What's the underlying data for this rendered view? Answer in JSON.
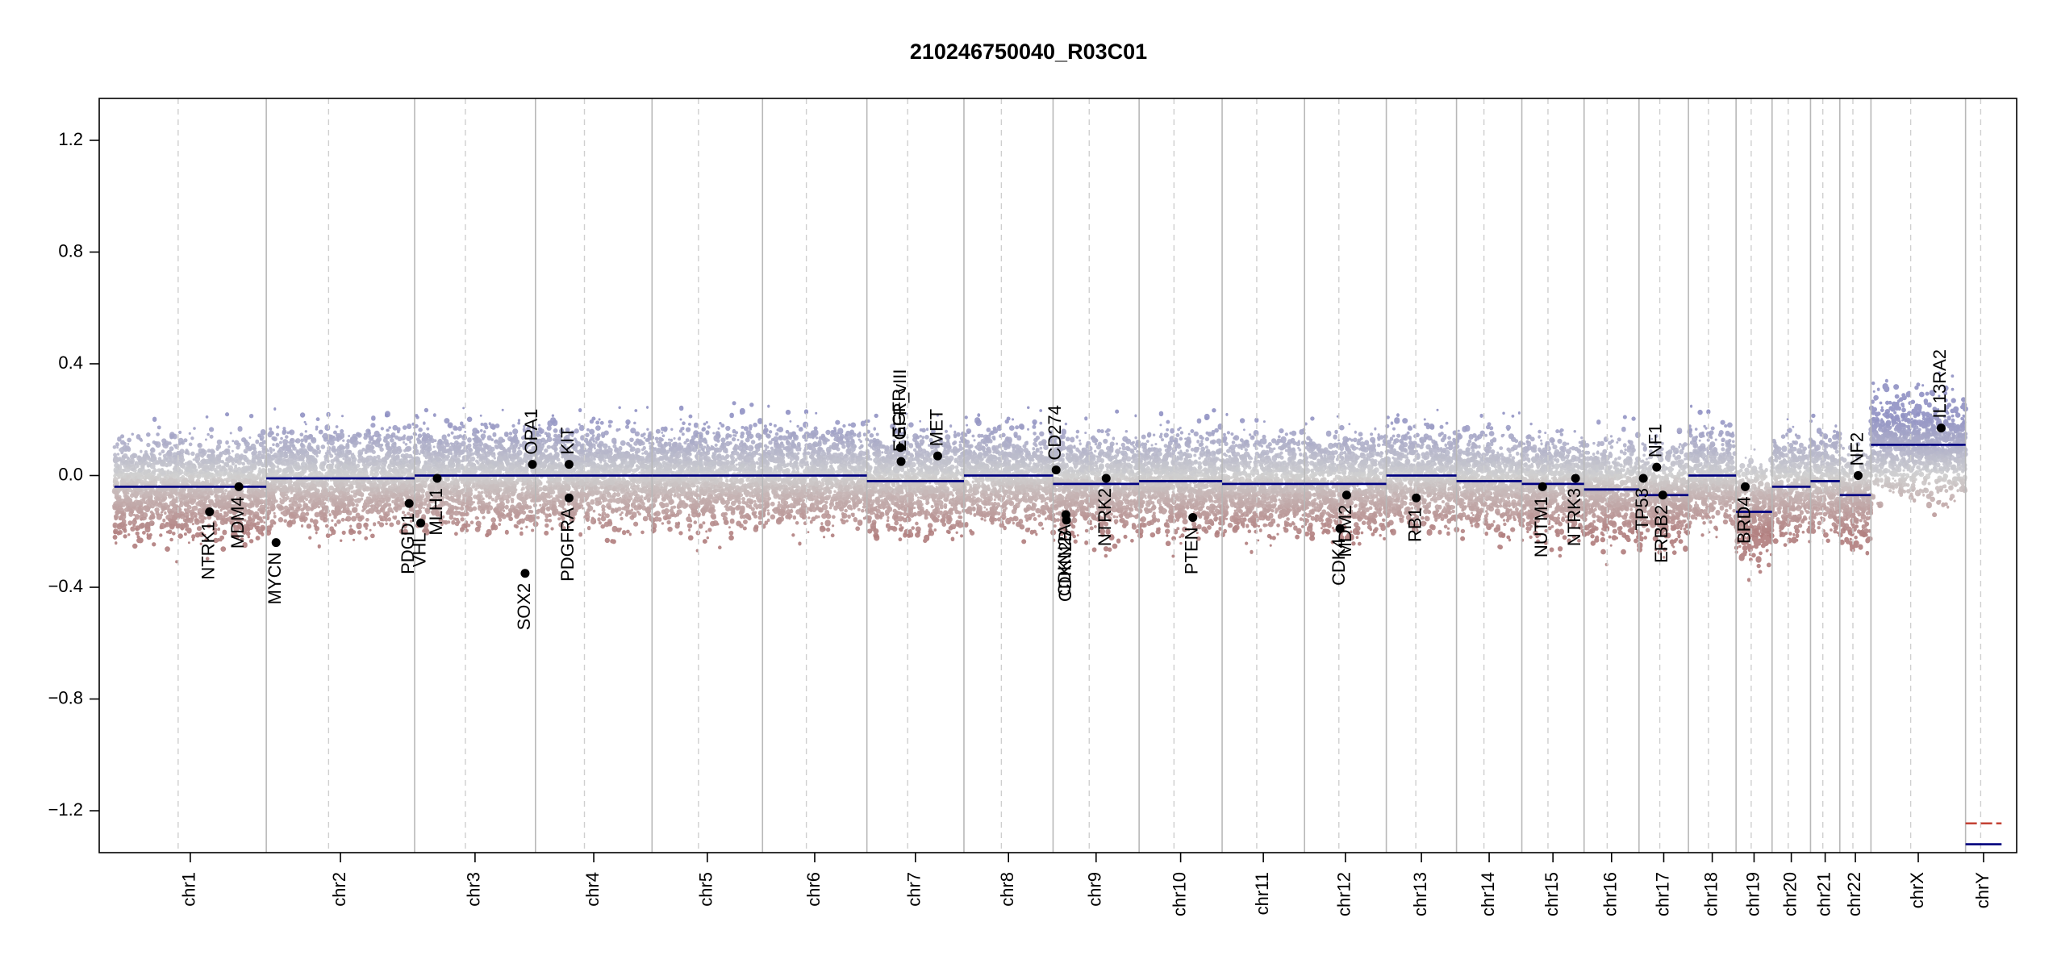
{
  "chart_data": {
    "type": "scatter",
    "title": "210246750040_R03C01",
    "xlabel": "",
    "ylabel": "",
    "ylim": [
      -1.35,
      1.35
    ],
    "yticks": [
      1.2,
      0.8,
      0.4,
      0.0,
      -0.4,
      -0.8,
      -1.2
    ],
    "ytick_labels": [
      "1.2",
      "0.8",
      "0.4",
      "0.0",
      "−0.4",
      "−0.8",
      "−1.2"
    ],
    "grid": false,
    "point_colors": {
      "gain": "#8f90c3",
      "neutral": "#cfcfcf",
      "loss": "#b07c7c"
    },
    "segment_color": "#000080",
    "gene_point_color": "#000000",
    "chromosomes": [
      {
        "name": "chr1",
        "length": 249
      },
      {
        "name": "chr2",
        "length": 243
      },
      {
        "name": "chr3",
        "length": 198
      },
      {
        "name": "chr4",
        "length": 191
      },
      {
        "name": "chr5",
        "length": 181
      },
      {
        "name": "chr6",
        "length": 171
      },
      {
        "name": "chr7",
        "length": 159
      },
      {
        "name": "chr8",
        "length": 146
      },
      {
        "name": "chr9",
        "length": 141
      },
      {
        "name": "chr10",
        "length": 136
      },
      {
        "name": "chr11",
        "length": 135
      },
      {
        "name": "chr12",
        "length": 134
      },
      {
        "name": "chr13",
        "length": 115
      },
      {
        "name": "chr14",
        "length": 107
      },
      {
        "name": "chr15",
        "length": 102
      },
      {
        "name": "chr16",
        "length": 90
      },
      {
        "name": "chr17",
        "length": 81
      },
      {
        "name": "chr18",
        "length": 78
      },
      {
        "name": "chr19",
        "length": 59
      },
      {
        "name": "chr20",
        "length": 63
      },
      {
        "name": "chr21",
        "length": 48
      },
      {
        "name": "chr22",
        "length": 51
      },
      {
        "name": "chrX",
        "length": 155
      },
      {
        "name": "chrY",
        "length": 59
      }
    ],
    "segments": [
      {
        "chr": "chr1",
        "start": 0,
        "end": 249,
        "value": -0.04
      },
      {
        "chr": "chr2",
        "start": 0,
        "end": 243,
        "value": -0.01
      },
      {
        "chr": "chr3",
        "start": 0,
        "end": 198,
        "value": 0.0
      },
      {
        "chr": "chr4",
        "start": 0,
        "end": 191,
        "value": 0.0
      },
      {
        "chr": "chr5",
        "start": 0,
        "end": 181,
        "value": 0.0
      },
      {
        "chr": "chr6",
        "start": 0,
        "end": 171,
        "value": 0.0
      },
      {
        "chr": "chr7",
        "start": 0,
        "end": 159,
        "value": -0.02
      },
      {
        "chr": "chr8",
        "start": 0,
        "end": 146,
        "value": 0.0
      },
      {
        "chr": "chr9",
        "start": 0,
        "end": 141,
        "value": -0.03
      },
      {
        "chr": "chr10",
        "start": 0,
        "end": 136,
        "value": -0.02
      },
      {
        "chr": "chr11",
        "start": 0,
        "end": 135,
        "value": -0.03
      },
      {
        "chr": "chr12",
        "start": 0,
        "end": 134,
        "value": -0.03
      },
      {
        "chr": "chr13",
        "start": 0,
        "end": 115,
        "value": 0.0
      },
      {
        "chr": "chr14",
        "start": 0,
        "end": 107,
        "value": -0.02
      },
      {
        "chr": "chr15",
        "start": 0,
        "end": 102,
        "value": -0.03
      },
      {
        "chr": "chr16",
        "start": 0,
        "end": 90,
        "value": -0.05
      },
      {
        "chr": "chr17",
        "start": 0,
        "end": 81,
        "value": -0.07
      },
      {
        "chr": "chr18",
        "start": 0,
        "end": 78,
        "value": 0.0
      },
      {
        "chr": "chr19",
        "start": 0,
        "end": 59,
        "value": -0.13
      },
      {
        "chr": "chr20",
        "start": 0,
        "end": 63,
        "value": -0.04
      },
      {
        "chr": "chr21",
        "start": 0,
        "end": 48,
        "value": -0.02
      },
      {
        "chr": "chr22",
        "start": 0,
        "end": 51,
        "value": -0.07
      },
      {
        "chr": "chrX",
        "start": 0,
        "end": 155,
        "value": 0.11
      },
      {
        "chr": "chrY",
        "start": 0,
        "end": 59,
        "value": -1.32
      }
    ],
    "genes": [
      {
        "name": "NTRK1",
        "chr": "chr1",
        "pos": 156,
        "value": -0.13,
        "label_side": "below"
      },
      {
        "name": "MDM4",
        "chr": "chr1",
        "pos": 204,
        "value": -0.04,
        "label_side": "below"
      },
      {
        "name": "MYCN",
        "chr": "chr2",
        "pos": 16,
        "value": -0.24,
        "label_side": "below"
      },
      {
        "name": "PDGD1",
        "chr": "chr2",
        "pos": 234,
        "value": -0.1,
        "label_side": "below"
      },
      {
        "name": "VHL",
        "chr": "chr3",
        "pos": 10,
        "value": -0.17,
        "label_side": "below"
      },
      {
        "name": "MLH1",
        "chr": "chr3",
        "pos": 37,
        "value": -0.01,
        "label_side": "below"
      },
      {
        "name": "SOX2",
        "chr": "chr3",
        "pos": 181,
        "value": -0.35,
        "label_side": "below"
      },
      {
        "name": "OPA1",
        "chr": "chr3",
        "pos": 193,
        "value": 0.04,
        "label_side": "above"
      },
      {
        "name": "KIT",
        "chr": "chr4",
        "pos": 55,
        "value": 0.04,
        "label_side": "above"
      },
      {
        "name": "PDGFRA",
        "chr": "chr4",
        "pos": 55,
        "value": -0.08,
        "label_side": "below"
      },
      {
        "name": "EGFR",
        "chr": "chr7",
        "pos": 55,
        "value": 0.1,
        "label_side": "above"
      },
      {
        "name": "EGFR_vIII",
        "chr": "chr7",
        "pos": 56,
        "value": 0.05,
        "label_side": "above"
      },
      {
        "name": "MET",
        "chr": "chr7",
        "pos": 116,
        "value": 0.07,
        "label_side": "above"
      },
      {
        "name": "CD274",
        "chr": "chr9",
        "pos": 5,
        "value": 0.02,
        "label_side": "above"
      },
      {
        "name": "CDKN2A",
        "chr": "chr9",
        "pos": 21,
        "value": -0.14,
        "label_side": "below"
      },
      {
        "name": "CDKN2B",
        "chr": "chr9",
        "pos": 22,
        "value": -0.16,
        "label_side": "below"
      },
      {
        "name": "NTRK2",
        "chr": "chr9",
        "pos": 87,
        "value": -0.01,
        "label_side": "below"
      },
      {
        "name": "PTEN",
        "chr": "chr10",
        "pos": 88,
        "value": -0.15,
        "label_side": "below"
      },
      {
        "name": "CDK4",
        "chr": "chr12",
        "pos": 58,
        "value": -0.19,
        "label_side": "below"
      },
      {
        "name": "MDM2",
        "chr": "chr12",
        "pos": 69,
        "value": -0.07,
        "label_side": "below"
      },
      {
        "name": "RB1",
        "chr": "chr13",
        "pos": 49,
        "value": -0.08,
        "label_side": "below"
      },
      {
        "name": "NUTM1",
        "chr": "chr15",
        "pos": 34,
        "value": -0.04,
        "label_side": "below"
      },
      {
        "name": "NTRK3",
        "chr": "chr15",
        "pos": 88,
        "value": -0.01,
        "label_side": "below"
      },
      {
        "name": "TP53",
        "chr": "chr17",
        "pos": 7,
        "value": -0.01,
        "label_side": "below"
      },
      {
        "name": "NF1",
        "chr": "chr17",
        "pos": 29,
        "value": 0.03,
        "label_side": "above"
      },
      {
        "name": "ERBB2",
        "chr": "chr17",
        "pos": 39,
        "value": -0.07,
        "label_side": "below"
      },
      {
        "name": "BRD4",
        "chr": "chr19",
        "pos": 15,
        "value": -0.04,
        "label_side": "below"
      },
      {
        "name": "NF2",
        "chr": "chr22",
        "pos": 30,
        "value": 0.0,
        "label_side": "above"
      },
      {
        "name": "IL13RA2",
        "chr": "chrX",
        "pos": 115,
        "value": 0.17,
        "label_side": "above"
      }
    ]
  }
}
